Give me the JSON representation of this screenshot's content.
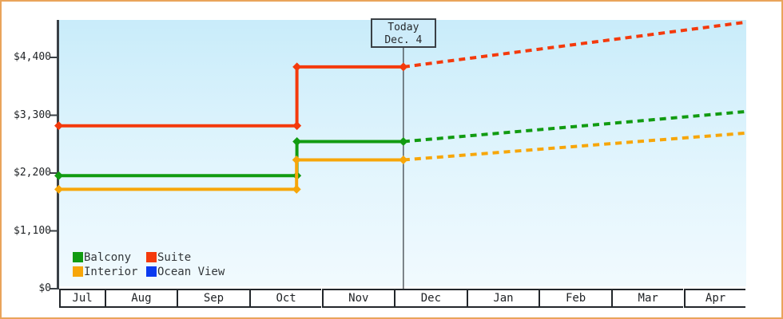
{
  "chart_data": {
    "type": "line",
    "description": "Cruise cabin price history and forecast",
    "y_axis": {
      "unit": "USD",
      "ticks": [
        {
          "value": 0,
          "label": "$0"
        },
        {
          "value": 1100,
          "label": "$1,100"
        },
        {
          "value": 2200,
          "label": "$2,200"
        },
        {
          "value": 3300,
          "label": "$3,300"
        },
        {
          "value": 4400,
          "label": "$4,400"
        }
      ]
    },
    "x_axis": {
      "months": [
        "Jul",
        "Aug",
        "Sep",
        "Oct",
        "Nov",
        "Dec",
        "Jan",
        "Feb",
        "Mar",
        "Apr"
      ],
      "visible_range_month_units": [
        0.37,
        9.86
      ]
    },
    "today_marker": {
      "line1": "Today",
      "line2": "Dec. 4",
      "x_month_units": 5.13
    },
    "series": [
      {
        "name": "Balcony",
        "color": "#119b11",
        "history": [
          [
            0.37,
            2150
          ],
          [
            3.66,
            2150
          ],
          [
            3.66,
            2800
          ],
          [
            5.13,
            2800
          ]
        ],
        "forecast": [
          [
            5.13,
            2800
          ],
          [
            9.86,
            3370
          ]
        ]
      },
      {
        "name": "Suite",
        "color": "#f43a0c",
        "history": [
          [
            0.37,
            3100
          ],
          [
            3.66,
            3100
          ],
          [
            3.66,
            4220
          ],
          [
            5.13,
            4220
          ]
        ],
        "forecast": [
          [
            5.13,
            4220
          ],
          [
            9.86,
            5070
          ]
        ]
      },
      {
        "name": "Interior",
        "color": "#f7a609",
        "history": [
          [
            0.37,
            1890
          ],
          [
            3.655,
            1890
          ],
          [
            3.655,
            2450
          ],
          [
            5.13,
            2450
          ]
        ],
        "forecast": [
          [
            5.13,
            2450
          ],
          [
            9.86,
            2960
          ]
        ]
      },
      {
        "name": "Ocean View",
        "color": "#0a3af0",
        "history": [],
        "forecast": []
      }
    ]
  }
}
